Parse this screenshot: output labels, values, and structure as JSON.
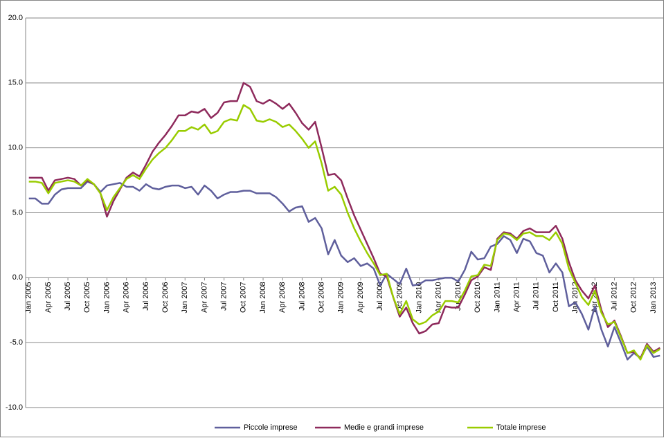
{
  "chart_data": {
    "type": "line",
    "categories": [
      "Jan 2005",
      null,
      null,
      "Apr 2005",
      null,
      null,
      "Jul 2005",
      null,
      null,
      "Oct 2005",
      null,
      null,
      "Jan 2006",
      null,
      null,
      "Apr 2006",
      null,
      null,
      "Jul 2006",
      null,
      null,
      "Oct 2006",
      null,
      null,
      "Jan 2007",
      null,
      null,
      "Apr 2007",
      null,
      null,
      "Jul 2007",
      null,
      null,
      "Oct 2007",
      null,
      null,
      "Jan 2008",
      null,
      null,
      "Apr 2008",
      null,
      null,
      "Jul 2008",
      null,
      null,
      "Oct 2008",
      null,
      null,
      "Jan 2009",
      null,
      null,
      "Apr 2009",
      null,
      null,
      "Jul 2009",
      null,
      null,
      "Oct 2009",
      null,
      null,
      "Jan 2010",
      null,
      null,
      "Apr 2010",
      null,
      null,
      "Jul 2010",
      null,
      null,
      "Oct 2010",
      null,
      null,
      "Jan 2011",
      null,
      null,
      "Apr 2011",
      null,
      null,
      "Jul 2011",
      null,
      null,
      "Oct 2011",
      null,
      null,
      "Jan 2012",
      null,
      null,
      "Apr 2012",
      null,
      null,
      "Jul 2012",
      null,
      null,
      "Oct 2012",
      null,
      null,
      "Jan 2013",
      null
    ],
    "series": [
      {
        "name": "Piccole imprese",
        "color": "#5f5f9c",
        "values": [
          6.1,
          6.1,
          5.7,
          5.7,
          6.4,
          6.8,
          6.9,
          6.9,
          6.9,
          7.4,
          7.2,
          6.6,
          7.1,
          7.2,
          7.3,
          7.0,
          7.0,
          6.7,
          7.2,
          6.9,
          6.8,
          7.0,
          7.1,
          7.1,
          6.9,
          7.0,
          6.4,
          7.1,
          6.7,
          6.1,
          6.4,
          6.6,
          6.6,
          6.7,
          6.7,
          6.5,
          6.5,
          6.5,
          6.2,
          5.7,
          5.1,
          5.4,
          5.5,
          4.3,
          4.6,
          3.8,
          1.8,
          2.9,
          1.7,
          1.2,
          1.5,
          0.9,
          1.1,
          0.7,
          -0.6,
          0.3,
          -0.1,
          -0.5,
          0.7,
          -0.6,
          -0.5,
          -0.2,
          -0.2,
          -0.1,
          0.0,
          0.0,
          -0.3,
          0.6,
          2.0,
          1.4,
          1.5,
          2.4,
          2.6,
          3.2,
          2.9,
          1.9,
          3.0,
          2.8,
          1.9,
          1.7,
          0.4,
          1.1,
          0.4,
          -2.2,
          -1.9,
          -2.8,
          -4.0,
          -2.2,
          -4.0,
          -5.3,
          -3.8,
          -5.0,
          -6.3,
          -5.8,
          -6.2,
          -5.3,
          -6.1,
          -6.0
        ]
      },
      {
        "name": "Medie e grandi imprese",
        "color": "#8e2a5c",
        "values": [
          7.7,
          7.7,
          7.7,
          6.7,
          7.5,
          7.6,
          7.7,
          7.6,
          7.1,
          7.5,
          7.2,
          6.5,
          4.7,
          5.9,
          6.8,
          7.7,
          8.1,
          7.8,
          8.7,
          9.7,
          10.4,
          11.0,
          11.7,
          12.5,
          12.5,
          12.8,
          12.7,
          13.0,
          12.3,
          12.7,
          13.5,
          13.6,
          13.6,
          15.0,
          14.7,
          13.6,
          13.4,
          13.7,
          13.4,
          13.0,
          13.4,
          12.7,
          11.9,
          11.4,
          12.0,
          10.0,
          7.9,
          8.0,
          7.5,
          6.1,
          4.8,
          3.7,
          2.6,
          1.5,
          0.3,
          0.1,
          -1.5,
          -3.0,
          -2.3,
          -3.5,
          -4.3,
          -4.1,
          -3.6,
          -3.5,
          -2.2,
          -2.3,
          -2.3,
          -1.3,
          -0.2,
          0.1,
          0.8,
          0.6,
          3.0,
          3.5,
          3.4,
          3.0,
          3.6,
          3.8,
          3.5,
          3.5,
          3.5,
          4.0,
          3.0,
          1.2,
          -0.2,
          -1.0,
          -1.6,
          -0.6,
          -2.5,
          -3.8,
          -3.3,
          -4.5,
          -5.8,
          -5.7,
          -6.2,
          -5.1,
          -5.7,
          -5.4
        ]
      },
      {
        "name": "Totale imprese",
        "color": "#99cc00",
        "values": [
          7.4,
          7.4,
          7.3,
          6.5,
          7.3,
          7.4,
          7.5,
          7.4,
          7.1,
          7.6,
          7.2,
          6.5,
          5.2,
          6.2,
          6.9,
          7.6,
          7.9,
          7.6,
          8.4,
          9.1,
          9.6,
          10.0,
          10.6,
          11.3,
          11.3,
          11.6,
          11.4,
          11.8,
          11.1,
          11.3,
          12.0,
          12.2,
          12.1,
          13.3,
          13.0,
          12.1,
          12.0,
          12.2,
          12.0,
          11.6,
          11.8,
          11.3,
          10.7,
          10.0,
          10.5,
          8.8,
          6.7,
          7.0,
          6.4,
          5.0,
          3.8,
          2.8,
          1.9,
          1.1,
          0.2,
          0.3,
          -1.5,
          -2.8,
          -1.8,
          -3.2,
          -3.6,
          -3.4,
          -2.9,
          -2.6,
          -1.8,
          -1.8,
          -1.9,
          -1.0,
          0.1,
          0.2,
          1.0,
          0.9,
          2.9,
          3.4,
          3.3,
          2.9,
          3.4,
          3.5,
          3.2,
          3.2,
          2.9,
          3.5,
          2.6,
          0.7,
          -0.4,
          -1.5,
          -2.1,
          -1.0,
          -2.7,
          -3.6,
          -3.4,
          -4.6,
          -5.8,
          -5.6,
          -6.3,
          -5.2,
          -5.8,
          -5.5
        ]
      }
    ],
    "ylim": [
      -10,
      20
    ],
    "yticks": [
      {
        "value": -10,
        "label": "-10.0"
      },
      {
        "value": -5,
        "label": "-5.0"
      },
      {
        "value": 0,
        "label": "0.0"
      },
      {
        "value": 5,
        "label": "5.0"
      },
      {
        "value": 10,
        "label": "10.0"
      },
      {
        "value": 15,
        "label": "15.0"
      },
      {
        "value": 20,
        "label": "20.0"
      }
    ],
    "grid": true,
    "legend": "bottom"
  }
}
